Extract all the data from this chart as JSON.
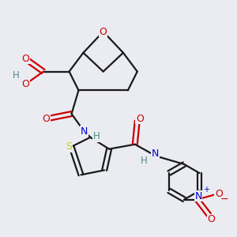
{
  "background_color": "#eaecf2",
  "figsize": [
    3.0,
    3.0
  ],
  "dpi": 100,
  "colors": {
    "C": "#1a1a1a",
    "O": "#cc0000",
    "N": "#0000cc",
    "S": "#cccc00",
    "H": "#4a8a8a",
    "bond": "#1a1a1a"
  }
}
